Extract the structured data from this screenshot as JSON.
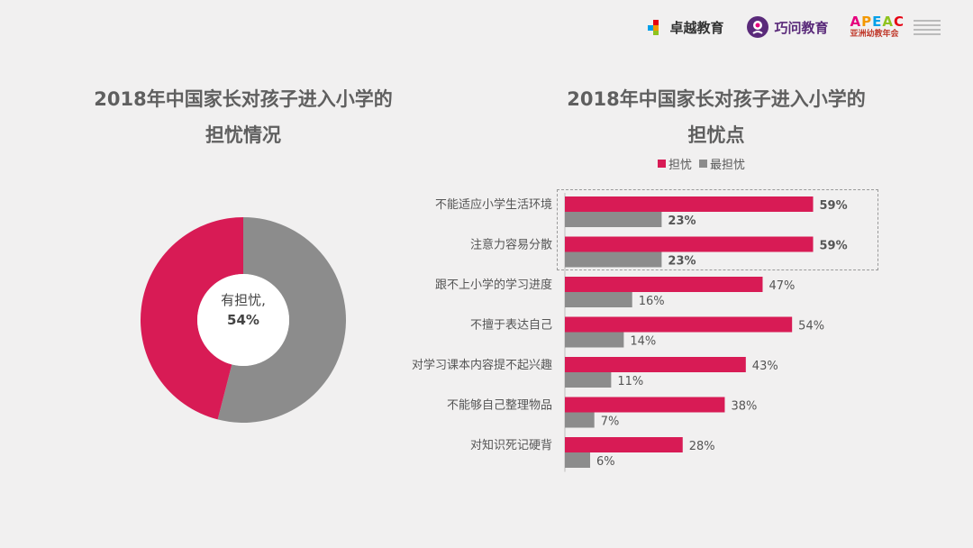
{
  "logos": {
    "zhuoyue": "卓越教育",
    "qiaowen": "巧问教育",
    "apeac": "APEAC",
    "apeac_sub": "亚洲幼教年会"
  },
  "left_title": [
    "2018年中国家长对孩子进入小学的",
    "担忧情况"
  ],
  "right_title": [
    "2018年中国家长对孩子进入小学的",
    "担忧点"
  ],
  "colors": {
    "worry": "#d81b55",
    "most": "#8c8c8c",
    "text": "#5f5f5f"
  },
  "chart_data": [
    {
      "type": "pie",
      "title": "2018年中国家长对孩子进入小学的担忧情况",
      "slices": [
        {
          "name": "有担忧",
          "value": 54,
          "color": "#8c8c8c"
        },
        {
          "name": "",
          "value": 46,
          "color": "#d81b55"
        }
      ],
      "center_label": "有担忧,",
      "center_value": "54%"
    },
    {
      "type": "bar",
      "orientation": "horizontal",
      "title": "2018年中国家长对孩子进入小学的担忧点",
      "legend": [
        "担忧",
        "最担忧"
      ],
      "legend_position": "top",
      "categories": [
        "不能适应小学生活环境",
        "注意力容易分散",
        "跟不上小学的学习进度",
        "不擅于表达自己",
        "对学习课本内容提不起兴趣",
        "不能够自己整理物品",
        "对知识死记硬背"
      ],
      "series": [
        {
          "name": "担忧",
          "values": [
            59,
            59,
            47,
            54,
            43,
            38,
            28
          ],
          "labels": [
            "59%",
            "59%",
            "47%",
            "54%",
            "43%",
            "38%",
            "28%"
          ],
          "bold": [
            true,
            true,
            false,
            false,
            false,
            false,
            false
          ]
        },
        {
          "name": "最担忧",
          "values": [
            23,
            23,
            16,
            14,
            11,
            7,
            6
          ],
          "labels": [
            "23%",
            "23%",
            "16%",
            "14%",
            "11%",
            "7%",
            "6%"
          ],
          "bold": [
            true,
            true,
            false,
            false,
            false,
            false,
            false
          ]
        }
      ],
      "xlim": [
        0,
        100
      ],
      "highlighted_categories": [
        0,
        1
      ]
    }
  ]
}
